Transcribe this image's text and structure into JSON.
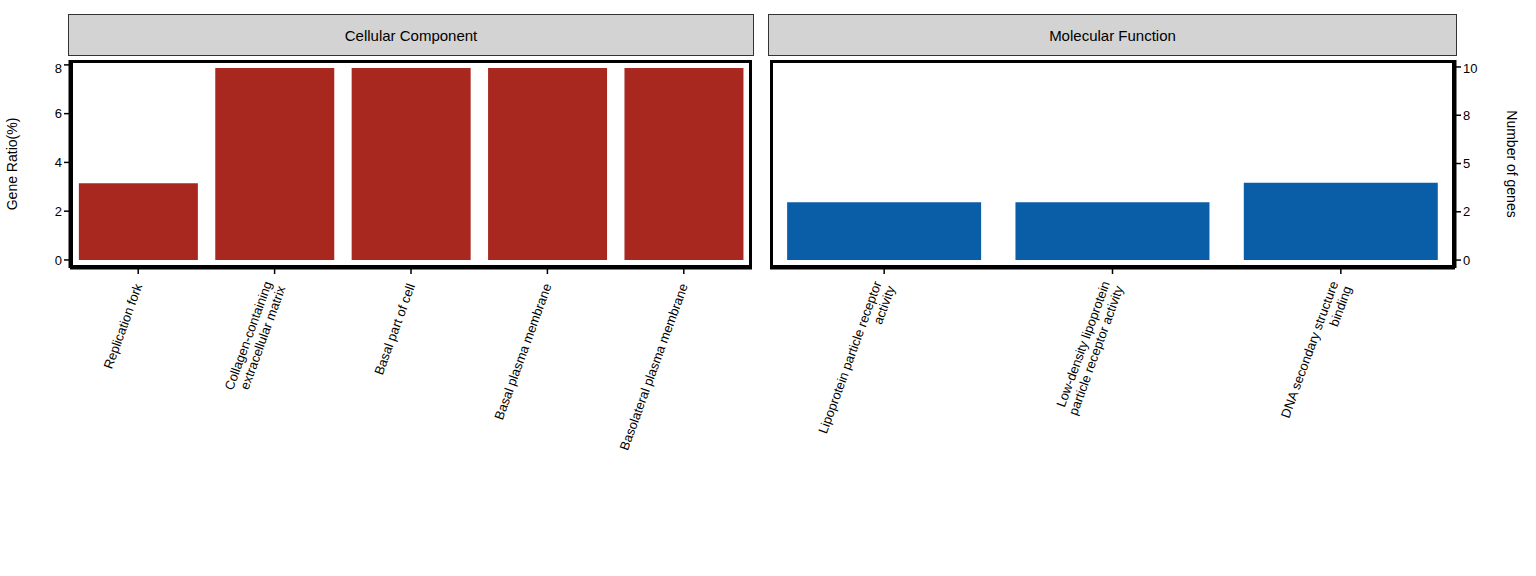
{
  "chart_data": [
    {
      "type": "bar",
      "title": "Cellular Component",
      "categories": [
        "Replication fork",
        "Collagen-containing extracellular matrix",
        "Basal part of cell",
        "Basal plasma membrane",
        "Basolateral plasma membrane"
      ],
      "values": [
        3.15,
        7.87,
        7.87,
        7.87,
        7.87
      ],
      "color": "#a82820",
      "ylabel": "Gene Ratio(%)",
      "ylim": [
        -0.33,
        8.2
      ],
      "yticks": [
        0,
        2,
        4,
        6,
        8
      ]
    },
    {
      "type": "bar",
      "title": "Molecular Function",
      "categories": [
        "Lipoprotein particle receptor activity",
        "Low-density lipoprotein particle receptor activity",
        "DNA secondary structure binding"
      ],
      "series": [
        {
          "axis": "y2",
          "values": [
            3,
            3,
            4
          ],
          "color": "#0a5ea8"
        }
      ],
      "y2label": "Number of genes",
      "y2lim": [
        -0.41,
        10.36
      ],
      "y2ticks": [
        0,
        {
          "value": 2.5,
          "label": "2"
        },
        5,
        {
          "value": 7.5,
          "label": "8"
        },
        10
      ]
    }
  ]
}
